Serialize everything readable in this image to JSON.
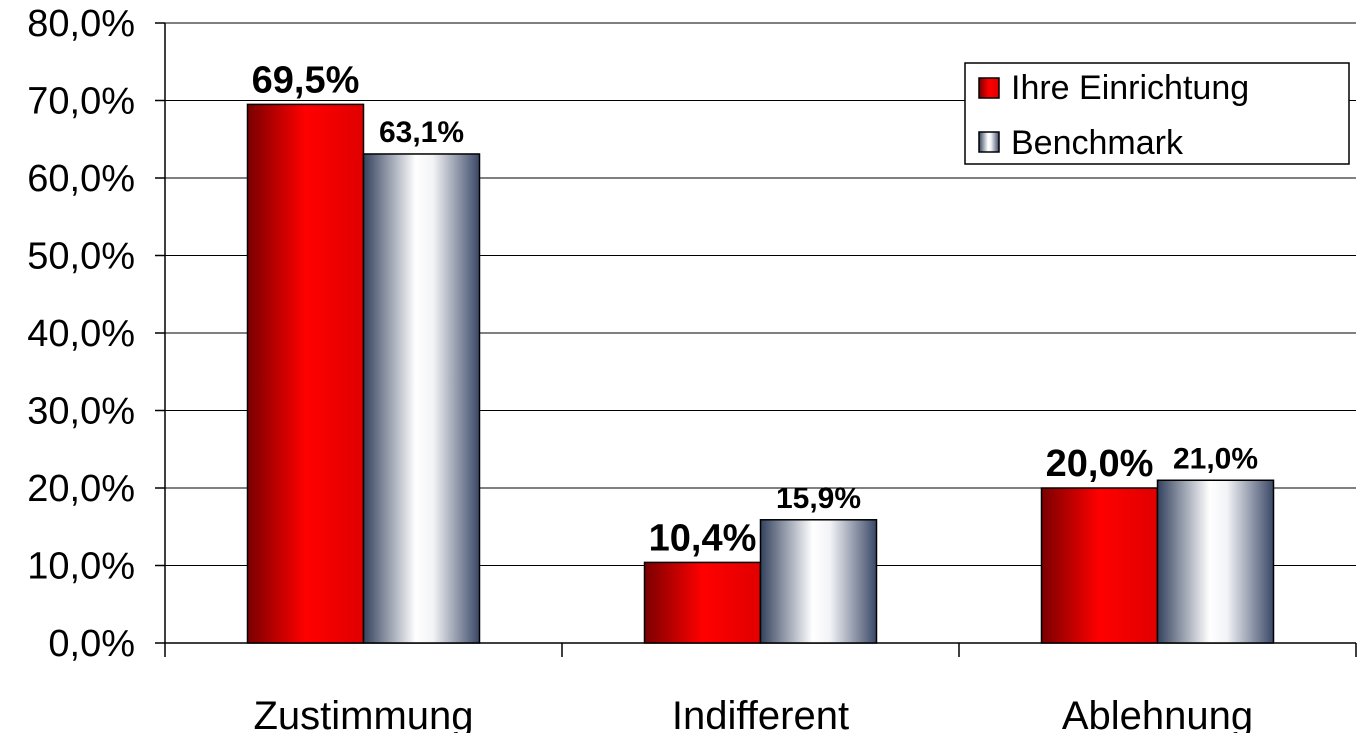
{
  "chart_data": {
    "type": "bar",
    "categories": [
      "Zustimmung",
      "Indifferent",
      "Ablehnung"
    ],
    "series": [
      {
        "name": "Ihre Einrichtung",
        "values": [
          69.5,
          10.4,
          20.0
        ],
        "labels": [
          "69,5%",
          "10,4%",
          "20,0%"
        ],
        "color": "#ff0000"
      },
      {
        "name": "Benchmark",
        "values": [
          63.1,
          15.9,
          21.0
        ],
        "labels": [
          "63,1%",
          "15,9%",
          "21,0%"
        ],
        "color": "#ffffff"
      }
    ],
    "yticks": [
      "0,0%",
      "10,0%",
      "20,0%",
      "30,0%",
      "40,0%",
      "50,0%",
      "60,0%",
      "70,0%",
      "80,0%"
    ],
    "ylim": [
      0,
      80
    ],
    "grid": true,
    "legend_position": "top-right",
    "title": "",
    "xlabel": "",
    "ylabel": ""
  }
}
